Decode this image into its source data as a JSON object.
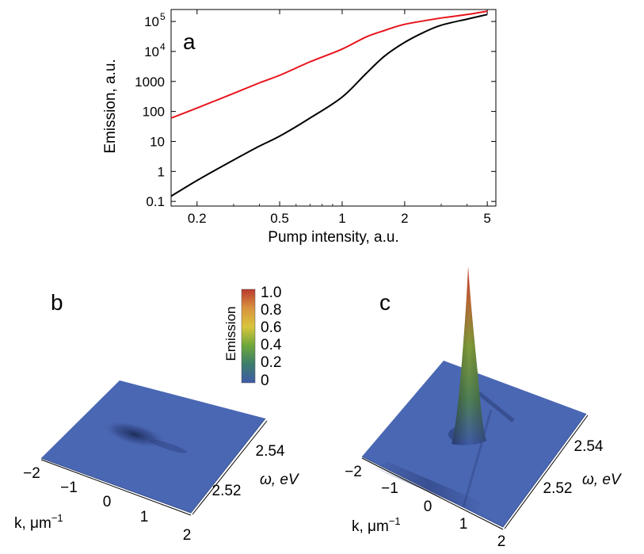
{
  "chart_data": [
    {
      "panel": "a",
      "type": "line",
      "xscale": "log",
      "yscale": "log",
      "xlabel": "Pump intensity, a.u.",
      "ylabel": "Emission, a.u.",
      "xlim": [
        0.15,
        5.5
      ],
      "ylim": [
        0.07,
        250000
      ],
      "x_ticks": [
        0.2,
        0.5,
        1,
        2,
        5
      ],
      "x_tick_labels": [
        "0.2",
        "0.5",
        "1",
        "2",
        "5"
      ],
      "y_ticks": [
        0.1,
        1,
        10,
        100,
        1000,
        10000,
        100000
      ],
      "y_tick_labels": [
        {
          "base": "0.1"
        },
        {
          "base": "1"
        },
        {
          "base": "10"
        },
        {
          "base": "100"
        },
        {
          "base": "1000"
        },
        {
          "base": "10",
          "sup": "4"
        },
        {
          "base": "10",
          "sup": "5"
        }
      ],
      "series": [
        {
          "name": "red",
          "color": "#e8141b",
          "x": [
            0.15,
            0.2,
            0.3,
            0.4,
            0.5,
            0.7,
            1.0,
            1.3,
            1.6,
            2.0,
            3.0,
            4.0,
            5.0
          ],
          "y": [
            60,
            130,
            400,
            900,
            1600,
            4500,
            12000,
            30000,
            50000,
            80000,
            130000,
            170000,
            220000
          ]
        },
        {
          "name": "black",
          "color": "#000000",
          "x": [
            0.15,
            0.2,
            0.3,
            0.4,
            0.5,
            0.7,
            1.0,
            1.3,
            1.6,
            2.0,
            2.5,
            3.0,
            4.0,
            5.0
          ],
          "y": [
            0.15,
            0.5,
            2.4,
            7,
            15,
            60,
            300,
            1800,
            7000,
            20000,
            45000,
            75000,
            120000,
            170000
          ]
        }
      ]
    },
    {
      "panel": "b",
      "type": "surface",
      "xlabel": "k, μm",
      "xlabel_sup": "−1",
      "ylabel": "ω, eV",
      "x_tick_labels": [
        "−2",
        "−1",
        "0",
        "1",
        "2"
      ],
      "y_tick_labels": [
        "2.52",
        "2.54"
      ]
    },
    {
      "panel": "c",
      "type": "surface",
      "xlabel": "k, μm",
      "xlabel_sup": "−1",
      "ylabel": "ω, eV",
      "x_tick_labels": [
        "−2",
        "−1",
        "0",
        "1",
        "2"
      ],
      "y_tick_labels": [
        "2.52",
        "2.54"
      ]
    }
  ],
  "colorbar": {
    "title": "Emission",
    "tick_labels": [
      "1.0",
      "0.8",
      "0.6",
      "0.4",
      "0.2",
      "0"
    ],
    "stops": [
      "#3f5aa8",
      "#3c7d6c",
      "#6ea73a",
      "#d9c53d",
      "#d9923f",
      "#b93a2d"
    ]
  }
}
